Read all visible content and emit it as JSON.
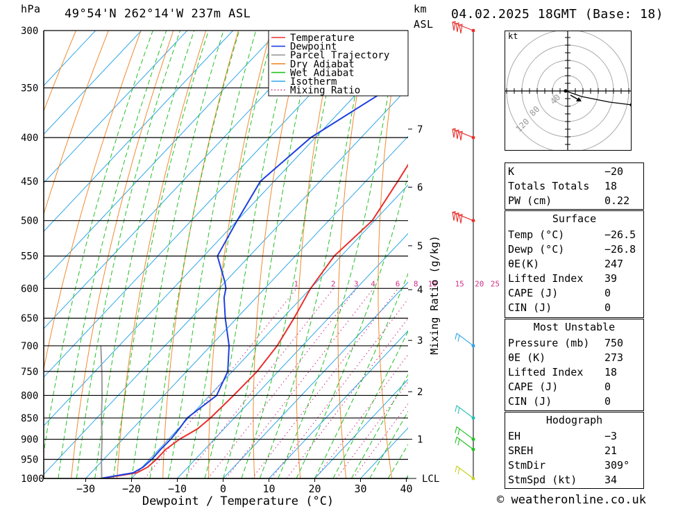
{
  "header": {
    "hpa_label": "hPa",
    "location": "49°54'N  262°14'W  237m  ASL",
    "km_label": "km",
    "asl_label": "ASL",
    "datetime": "04.02.2025  18GMT  (Base: 18)"
  },
  "skewt": {
    "pressures": [
      300,
      350,
      400,
      450,
      500,
      550,
      600,
      650,
      700,
      750,
      800,
      850,
      900,
      950,
      1000
    ],
    "temps": [
      -30,
      -20,
      -10,
      0,
      10,
      20,
      30,
      40
    ],
    "temp_tick_labels": [
      "−30",
      "−20",
      "−10",
      "0",
      "10",
      "20",
      "30",
      "40"
    ],
    "km_ticks": [
      {
        "km": 7,
        "p": 391
      },
      {
        "km": 6,
        "p": 457
      },
      {
        "km": 5,
        "p": 535
      },
      {
        "km": 4,
        "p": 602
      },
      {
        "km": 3,
        "p": 690
      },
      {
        "km": 2,
        "p": 792
      },
      {
        "km": 1,
        "p": 900
      }
    ],
    "lcl_label": "LCL",
    "lcl_pressure": 1000,
    "mixing_ratio_labels": [
      "1",
      "2",
      "3",
      "4",
      "6",
      "8",
      "10",
      "15",
      "20",
      "25"
    ],
    "mixing_ratio_values": [
      1,
      2,
      3,
      4,
      6,
      8,
      10,
      15,
      20,
      25
    ],
    "x_axis_label": "Dewpoint  /  Temperature  (°C)",
    "right_axis_label": "Mixing Ratio  (g/kg)",
    "legend": [
      "Temperature",
      "Dewpoint",
      "Parcel Trajectory",
      "Dry Adiabat",
      "Wet Adiabat",
      "Isotherm",
      "Mixing Ratio"
    ]
  },
  "chart_data": {
    "type": "line",
    "title": "",
    "xlabel": "Dewpoint  /  Temperature  (°C)",
    "ylabel": "hPa",
    "ylim": [
      1000,
      300
    ],
    "xlim": [
      -40,
      40
    ],
    "series": [
      {
        "name": "Temperature",
        "color": "#e8302e",
        "p": [
          1000,
          985,
          970,
          950,
          925,
          900,
          875,
          850,
          800,
          750,
          700,
          650,
          600,
          550,
          500,
          450,
          400,
          350,
          300
        ],
        "t": [
          -26.5,
          -20,
          -18.8,
          -18.5,
          -18.5,
          -17.6,
          -15.8,
          -15.2,
          -14.8,
          -14.6,
          -15.5,
          -17.5,
          -20,
          -21.5,
          -20.5,
          -23,
          -26,
          -34,
          -47
        ]
      },
      {
        "name": "Dewpoint",
        "color": "#1f3fe0",
        "p": [
          1000,
          985,
          970,
          950,
          925,
          900,
          875,
          850,
          800,
          750,
          700,
          650,
          615,
          600,
          590,
          550,
          500,
          450,
          400,
          350,
          300
        ],
        "t": [
          -26.8,
          -20.8,
          -19.8,
          -19.5,
          -19.6,
          -19.5,
          -19.8,
          -20.3,
          -18.5,
          -21,
          -26,
          -32.5,
          -37,
          -38.5,
          -40,
          -47,
          -50,
          -53,
          -51,
          -44,
          -51
        ]
      },
      {
        "name": "Parcel Trajectory",
        "color": "#9a9a9a",
        "p": [
          1000,
          950,
          900,
          850,
          800,
          750,
          700
        ],
        "t": [
          -26.5,
          -30.5,
          -34.5,
          -39,
          -43.5,
          -48.5,
          -54
        ]
      }
    ],
    "wind_barbs_pressures": [
      300,
      400,
      500,
      700,
      850,
      900,
      925,
      1000
    ]
  },
  "hodograph": {
    "unit_label": "kt",
    "ring_labels": [
      "40",
      "80",
      "120"
    ]
  },
  "indices": {
    "general": [
      [
        "K",
        "−20"
      ],
      [
        "Totals Totals",
        "18"
      ],
      [
        "PW (cm)",
        "0.22"
      ]
    ],
    "surface_title": "Surface",
    "surface": [
      [
        "Temp (°C)",
        "−26.5"
      ],
      [
        "Dewp (°C)",
        "−26.8"
      ],
      [
        "θE(K)",
        "247"
      ],
      [
        "Lifted Index",
        "39"
      ],
      [
        "CAPE (J)",
        "0"
      ],
      [
        "CIN (J)",
        "0"
      ]
    ],
    "mu_title": "Most Unstable",
    "mu": [
      [
        "Pressure (mb)",
        "750"
      ],
      [
        "θE (K)",
        "273"
      ],
      [
        "Lifted Index",
        "18"
      ],
      [
        "CAPE (J)",
        "0"
      ],
      [
        "CIN (J)",
        "0"
      ]
    ],
    "hodo_title": "Hodograph",
    "hodo": [
      [
        "EH",
        "−3"
      ],
      [
        "SREH",
        "21"
      ],
      [
        "StmDir",
        "309°"
      ],
      [
        "StmSpd (kt)",
        "34"
      ]
    ]
  },
  "footer": {
    "copyright": "© weatheronline.co.uk"
  }
}
